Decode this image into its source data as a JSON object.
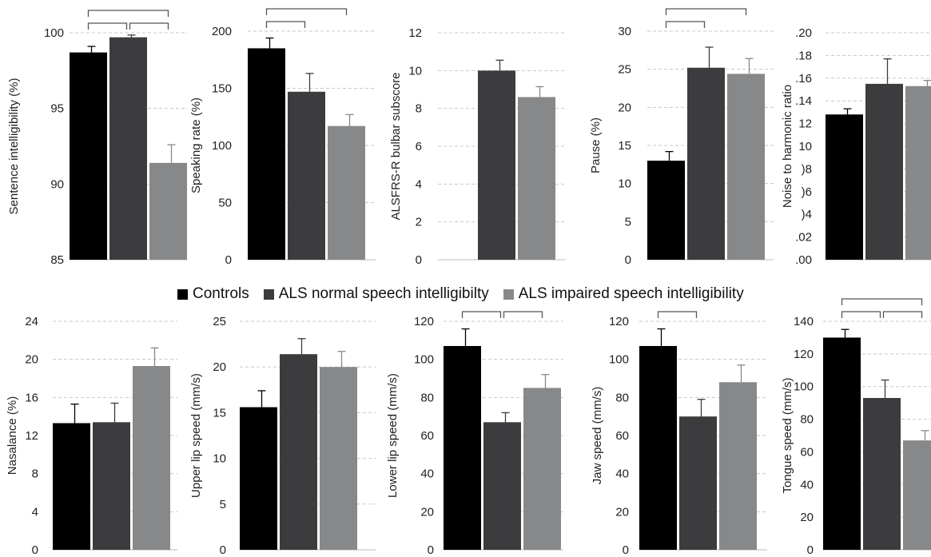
{
  "colors": {
    "controls": "#000000",
    "als_normal": "#3c3c3e",
    "als_impaired": "#87888a",
    "grid": "#c8c8c8",
    "bracket": "#555555"
  },
  "legend": {
    "items": [
      {
        "key": "controls",
        "label": "Controls"
      },
      {
        "key": "als_normal",
        "label": "ALS normal speech intelligibilty"
      },
      {
        "key": "als_impaired",
        "label": "ALS impaired speech intelligibility"
      }
    ]
  },
  "chart_data": [
    {
      "type": "bar",
      "ylabel": "Sentence intelligibility (%)",
      "ylim": [
        85,
        100
      ],
      "ticks": [
        "85",
        "90",
        "95",
        "100"
      ],
      "tick_values": [
        85,
        90,
        95,
        100
      ],
      "groups": [
        "controls",
        "als_normal",
        "als_impaired"
      ],
      "values": [
        98.7,
        99.7,
        91.4
      ],
      "errors": [
        0.4,
        0.15,
        1.2
      ],
      "brackets": [
        [
          0,
          1
        ],
        [
          1,
          2
        ],
        [
          0,
          2
        ]
      ]
    },
    {
      "type": "bar",
      "ylabel": "Speaking rate (%)",
      "ylim": [
        0,
        200
      ],
      "ticks": [
        "0",
        "50",
        "100",
        "150",
        "200"
      ],
      "tick_values": [
        0,
        50,
        100,
        150,
        200
      ],
      "groups": [
        "controls",
        "als_normal",
        "als_impaired"
      ],
      "values": [
        185,
        147,
        117
      ],
      "errors": [
        9,
        16,
        10
      ],
      "brackets": [
        [
          0,
          1
        ],
        [
          0,
          2
        ]
      ]
    },
    {
      "type": "bar",
      "ylabel": "ALSFRS-R bulbar subscore",
      "ylim": [
        0,
        12
      ],
      "ticks": [
        "0",
        "2",
        "4",
        "6",
        "8",
        "10",
        "12"
      ],
      "tick_values": [
        0,
        2,
        4,
        6,
        8,
        10,
        12
      ],
      "groups": [
        "als_normal",
        "als_impaired"
      ],
      "values": [
        10.0,
        8.6
      ],
      "errors": [
        0.55,
        0.55
      ],
      "brackets": []
    },
    {
      "type": "bar",
      "ylabel": "Pause (%)",
      "ylim": [
        0,
        30
      ],
      "ticks": [
        "0",
        "5",
        "10",
        "15",
        "20",
        "25",
        "30"
      ],
      "tick_values": [
        0,
        5,
        10,
        15,
        20,
        25,
        30
      ],
      "groups": [
        "controls",
        "als_normal",
        "als_impaired"
      ],
      "values": [
        13.0,
        25.2,
        24.4
      ],
      "errors": [
        1.2,
        2.7,
        2.0
      ],
      "brackets": [
        [
          0,
          1
        ],
        [
          0,
          2
        ]
      ]
    },
    {
      "type": "bar",
      "ylabel": "Noise to harmonic ratio",
      "ylim": [
        0,
        0.2
      ],
      "ticks": [
        ".00",
        ".02",
        ")4",
        ")6",
        ")8",
        "10",
        "12",
        ".14",
        ".16",
        ".18",
        ".20"
      ],
      "tick_values": [
        0,
        0.02,
        0.04,
        0.06,
        0.08,
        0.1,
        0.12,
        0.14,
        0.16,
        0.18,
        0.2
      ],
      "groups": [
        "controls",
        "als_normal",
        "als_impaired"
      ],
      "values": [
        0.128,
        0.155,
        0.153
      ],
      "errors": [
        0.005,
        0.022,
        0.005
      ],
      "brackets": []
    },
    {
      "type": "bar",
      "ylabel": "Nasalance (%)",
      "ylim": [
        0,
        24
      ],
      "ticks": [
        "0",
        "4",
        "8",
        "12",
        "16",
        "20",
        "24"
      ],
      "tick_values": [
        0,
        4,
        8,
        12,
        16,
        20,
        24
      ],
      "groups": [
        "controls",
        "als_normal",
        "als_impaired"
      ],
      "values": [
        13.3,
        13.4,
        19.3
      ],
      "errors": [
        2.0,
        2.0,
        1.9
      ],
      "brackets": []
    },
    {
      "type": "bar",
      "ylabel": "Upper lip speed (mm/s)",
      "ylim": [
        0,
        25
      ],
      "ticks": [
        "0",
        "5",
        "10",
        "15",
        "20",
        "25"
      ],
      "tick_values": [
        0,
        5,
        10,
        15,
        20,
        25
      ],
      "groups": [
        "controls",
        "als_normal",
        "als_impaired"
      ],
      "values": [
        15.6,
        21.4,
        20.0
      ],
      "errors": [
        1.8,
        1.7,
        1.7
      ],
      "brackets": []
    },
    {
      "type": "bar",
      "ylabel": "Lower lip speed (mm/s)",
      "ylim": [
        0,
        120
      ],
      "ticks": [
        "0",
        "20",
        "40",
        "60",
        "80",
        "100",
        "120"
      ],
      "tick_values": [
        0,
        20,
        40,
        60,
        80,
        100,
        120
      ],
      "groups": [
        "controls",
        "als_normal",
        "als_impaired"
      ],
      "values": [
        107,
        67,
        85
      ],
      "errors": [
        9,
        5,
        7
      ],
      "brackets": [
        [
          0,
          1
        ],
        [
          1,
          2
        ]
      ]
    },
    {
      "type": "bar",
      "ylabel": "Jaw speed (mm/s)",
      "ylim": [
        0,
        120
      ],
      "ticks": [
        "0",
        "20",
        "40",
        "60",
        "80",
        "100",
        "120"
      ],
      "tick_values": [
        0,
        20,
        40,
        60,
        80,
        100,
        120
      ],
      "groups": [
        "controls",
        "als_normal",
        "als_impaired"
      ],
      "values": [
        107,
        70,
        88
      ],
      "errors": [
        9,
        9,
        9
      ],
      "brackets": [
        [
          0,
          1
        ]
      ]
    },
    {
      "type": "bar",
      "ylabel": "Tongue speed (mm/s)",
      "ylim": [
        0,
        140
      ],
      "ticks": [
        "0",
        "20",
        "40",
        "60",
        "80",
        "100",
        "120",
        "140"
      ],
      "tick_values": [
        0,
        20,
        40,
        60,
        80,
        100,
        120,
        140
      ],
      "groups": [
        "controls",
        "als_normal",
        "als_impaired"
      ],
      "values": [
        130,
        93,
        67
      ],
      "errors": [
        5,
        11,
        6
      ],
      "brackets": [
        [
          0,
          1
        ],
        [
          1,
          2
        ],
        [
          0,
          2
        ]
      ]
    }
  ]
}
